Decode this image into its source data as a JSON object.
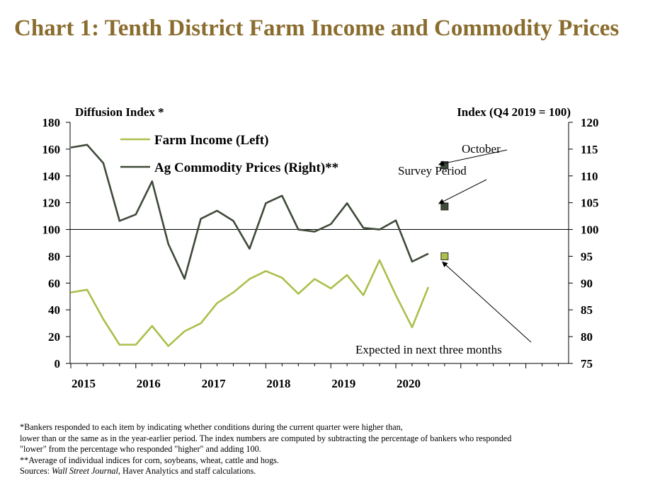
{
  "title": "Chart 1: Tenth District Farm Income  and Commodity Prices",
  "chart_data": {
    "type": "line",
    "left_axis_label": "Diffusion Index *",
    "right_axis_label": "Index (Q4 2019 = 100)",
    "left_ylim": [
      0,
      180
    ],
    "right_ylim": [
      75,
      120
    ],
    "left_ticks": [
      0,
      20,
      40,
      60,
      80,
      100,
      120,
      140,
      160,
      180
    ],
    "right_ticks": [
      75,
      80,
      85,
      90,
      95,
      100,
      105,
      110,
      115,
      120
    ],
    "x_ticks": [
      "2015",
      "2016",
      "2017",
      "2018",
      "2019",
      "2020"
    ],
    "reference_line": 100,
    "x": [
      "2015Q1",
      "2015Q2",
      "2015Q3",
      "2015Q4",
      "2016Q1",
      "2016Q2",
      "2016Q3",
      "2016Q4",
      "2017Q1",
      "2017Q2",
      "2017Q3",
      "2017Q4",
      "2018Q1",
      "2018Q2",
      "2018Q3",
      "2018Q4",
      "2019Q1",
      "2019Q2",
      "2019Q3",
      "2019Q4",
      "2020Q1",
      "2020Q2",
      "2020Q3"
    ],
    "series": [
      {
        "name": "Farm Income (Left)",
        "axis": "left",
        "color": "#a9c04a",
        "values": [
          53,
          55,
          33,
          14,
          14,
          28,
          13,
          24,
          30,
          45,
          53,
          63,
          69,
          64,
          52,
          63,
          56,
          66,
          51,
          77,
          51,
          27,
          57
        ],
        "expected": {
          "x": "2020Q4",
          "value": 80
        }
      },
      {
        "name": "Ag Commodity Prices (Right)**",
        "axis": "right",
        "color": "#3f4a3a",
        "values": [
          115.3,
          115.8,
          112.4,
          101.6,
          102.8,
          109.0,
          97.3,
          90.8,
          102.0,
          103.5,
          101.6,
          96.4,
          104.9,
          106.3,
          100.0,
          99.6,
          101.0,
          104.9,
          100.3,
          100.0,
          101.7,
          94.0,
          95.5
        ],
        "markers": [
          {
            "label": "October",
            "x": "2020Q4",
            "value": 112.0
          },
          {
            "label": "Survey Period",
            "x": "2020Q4",
            "value": 104.3
          }
        ]
      }
    ],
    "annotations": {
      "october": "October",
      "survey_period": "Survey Period",
      "expected": "Expected in next three months"
    }
  },
  "footnotes": [
    "*Bankers responded to each item by indicating  whether conditions  during  the current quarter were higher than,",
    "lower than or the same as in the year-earlier period.  The index numbers are computed by subtracting the percentage of bankers who responded",
    "\"lower\"  from the percentage who responded \"higher\"  and adding  100.",
    "**Average of individual  indices for corn, soybeans, wheat, cattle and hogs."
  ],
  "sources": {
    "prefix": "Sources: ",
    "italic": "Wall Street Journal",
    "suffix": ", Haver Analytics and staff calculations."
  }
}
